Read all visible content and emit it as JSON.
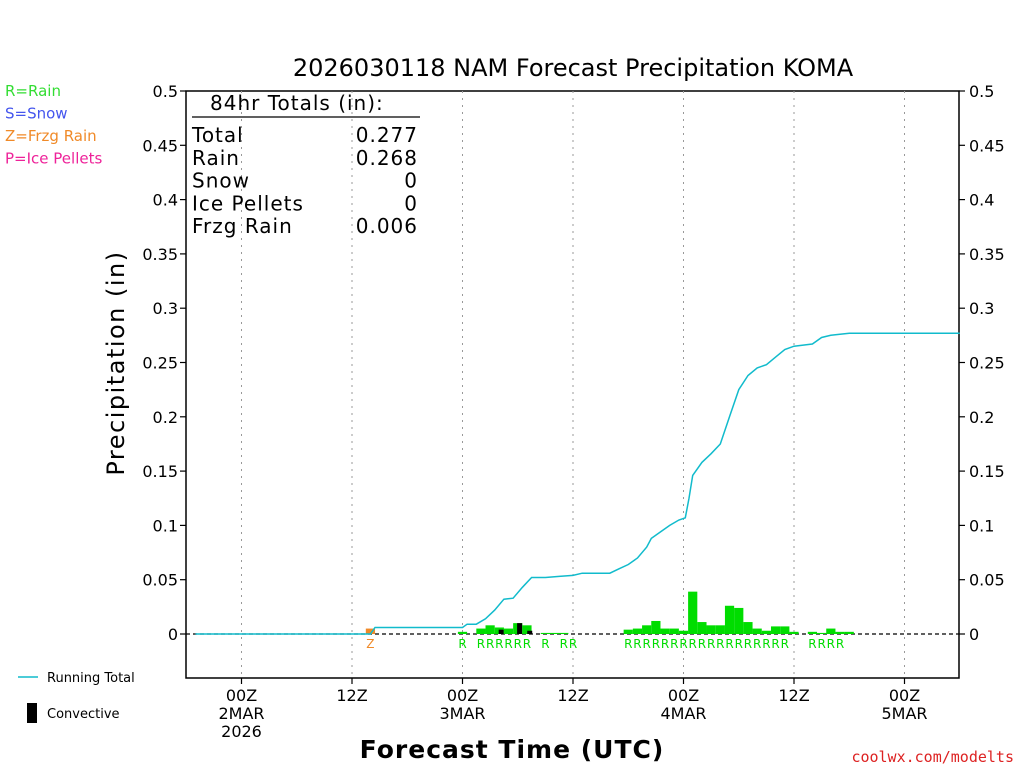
{
  "chart_data": {
    "type": "bar+line",
    "title": "2026030118 NAM Forecast Precipitation KOMA",
    "ylabel": "Precipitation (in)",
    "xlabel": "Forecast Time (UTC)",
    "credit": "coolwx.com/modelts",
    "ylim": [
      -0.04,
      0.5
    ],
    "xlim_hours": [
      -6,
      78
    ],
    "y_ticks": [
      0,
      0.05,
      0.1,
      0.15,
      0.2,
      0.25,
      0.3,
      0.35,
      0.4,
      0.45,
      0.5
    ],
    "y_tick_labels": [
      "0",
      "0.05",
      "0.1",
      "0.15",
      "0.2",
      "0.25",
      "0.3",
      "0.35",
      "0.4",
      "0.45",
      "0.5"
    ],
    "x_ticks": [
      {
        "hour": 0,
        "lines": [
          "00Z",
          "2MAR",
          "2026"
        ]
      },
      {
        "hour": 12,
        "lines": [
          "12Z"
        ]
      },
      {
        "hour": 24,
        "lines": [
          "00Z",
          "3MAR"
        ]
      },
      {
        "hour": 36,
        "lines": [
          "12Z"
        ]
      },
      {
        "hour": 48,
        "lines": [
          "00Z",
          "4MAR"
        ]
      },
      {
        "hour": 60,
        "lines": [
          "12Z"
        ]
      },
      {
        "hour": 72,
        "lines": [
          "00Z",
          "5MAR"
        ]
      }
    ],
    "legend_types": [
      {
        "label": "R=Rain",
        "color": "#33dd33"
      },
      {
        "label": "S=Snow",
        "color": "#4455ee"
      },
      {
        "label": "Z=Frzg Rain",
        "color": "#f08a28"
      },
      {
        "label": "P=Ice Pellets",
        "color": "#ee2299"
      }
    ],
    "legend_bottom": {
      "running_total": "Running Total",
      "convective": "Convective"
    },
    "totals": {
      "header": "84hr Totals (in):",
      "rows": [
        {
          "label": "Total",
          "value": "0.277"
        },
        {
          "label": "Rain",
          "value": "0.268"
        },
        {
          "label": "Snow",
          "value": "0"
        },
        {
          "label": "Ice Pellets",
          "value": "0"
        },
        {
          "label": "Frzg Rain",
          "value": "0.006"
        }
      ]
    },
    "colors": {
      "rain": "#00dd00",
      "frzg": "#f08a28",
      "running_total": "#11bbcc",
      "convective": "#000000",
      "grid": "#999999"
    },
    "precip_bars": [
      {
        "hour": 14,
        "value": 0.005,
        "type": "Z"
      },
      {
        "hour": 24,
        "value": 0.002,
        "type": "R"
      },
      {
        "hour": 26,
        "value": 0.005,
        "type": "R"
      },
      {
        "hour": 27,
        "value": 0.008,
        "type": "R"
      },
      {
        "hour": 28,
        "value": 0.006,
        "type": "R"
      },
      {
        "hour": 29,
        "value": 0.005,
        "type": "R"
      },
      {
        "hour": 30,
        "value": 0.01,
        "type": "R"
      },
      {
        "hour": 31,
        "value": 0.008,
        "type": "R"
      },
      {
        "hour": 33,
        "value": 0.001,
        "type": "R"
      },
      {
        "hour": 34,
        "value": 0.001,
        "type": "R"
      },
      {
        "hour": 35,
        "value": 0.001,
        "type": "R"
      },
      {
        "hour": 42,
        "value": 0.004,
        "type": "R"
      },
      {
        "hour": 43,
        "value": 0.005,
        "type": "R"
      },
      {
        "hour": 44,
        "value": 0.008,
        "type": "R"
      },
      {
        "hour": 45,
        "value": 0.012,
        "type": "R"
      },
      {
        "hour": 46,
        "value": 0.005,
        "type": "R"
      },
      {
        "hour": 47,
        "value": 0.005,
        "type": "R"
      },
      {
        "hour": 48,
        "value": 0.003,
        "type": "R"
      },
      {
        "hour": 49,
        "value": 0.039,
        "type": "R"
      },
      {
        "hour": 50,
        "value": 0.011,
        "type": "R"
      },
      {
        "hour": 51,
        "value": 0.008,
        "type": "R"
      },
      {
        "hour": 52,
        "value": 0.008,
        "type": "R"
      },
      {
        "hour": 53,
        "value": 0.026,
        "type": "R"
      },
      {
        "hour": 54,
        "value": 0.024,
        "type": "R"
      },
      {
        "hour": 55,
        "value": 0.011,
        "type": "R"
      },
      {
        "hour": 56,
        "value": 0.005,
        "type": "R"
      },
      {
        "hour": 57,
        "value": 0.003,
        "type": "R"
      },
      {
        "hour": 58,
        "value": 0.007,
        "type": "R"
      },
      {
        "hour": 59,
        "value": 0.007,
        "type": "R"
      },
      {
        "hour": 60,
        "value": 0.002,
        "type": "R"
      },
      {
        "hour": 62,
        "value": 0.002,
        "type": "R"
      },
      {
        "hour": 63,
        "value": 0.001,
        "type": "R"
      },
      {
        "hour": 64,
        "value": 0.005,
        "type": "R"
      },
      {
        "hour": 65,
        "value": 0.002,
        "type": "R"
      },
      {
        "hour": 66,
        "value": 0.002,
        "type": "R"
      }
    ],
    "convective_bars": [
      {
        "hour": 28.2,
        "value": 0.004
      },
      {
        "hour": 30.2,
        "value": 0.01
      },
      {
        "hour": 31.3,
        "value": 0.003
      }
    ],
    "type_marks": [
      {
        "hour": 14,
        "letter": "Z"
      },
      {
        "hour": 24,
        "letter": "R"
      },
      {
        "hour": 26,
        "letter": "R"
      },
      {
        "hour": 27,
        "letter": "R"
      },
      {
        "hour": 28,
        "letter": "R"
      },
      {
        "hour": 29,
        "letter": "R"
      },
      {
        "hour": 30,
        "letter": "R"
      },
      {
        "hour": 31,
        "letter": "R"
      },
      {
        "hour": 33,
        "letter": "R"
      },
      {
        "hour": 35,
        "letter": "R"
      },
      {
        "hour": 36,
        "letter": "R"
      },
      {
        "hour": 42,
        "letter": "R"
      },
      {
        "hour": 43,
        "letter": "R"
      },
      {
        "hour": 44,
        "letter": "R"
      },
      {
        "hour": 45,
        "letter": "R"
      },
      {
        "hour": 46,
        "letter": "R"
      },
      {
        "hour": 47,
        "letter": "R"
      },
      {
        "hour": 48,
        "letter": "R"
      },
      {
        "hour": 49,
        "letter": "R"
      },
      {
        "hour": 50,
        "letter": "R"
      },
      {
        "hour": 51,
        "letter": "R"
      },
      {
        "hour": 52,
        "letter": "R"
      },
      {
        "hour": 53,
        "letter": "R"
      },
      {
        "hour": 54,
        "letter": "R"
      },
      {
        "hour": 55,
        "letter": "R"
      },
      {
        "hour": 56,
        "letter": "R"
      },
      {
        "hour": 57,
        "letter": "R"
      },
      {
        "hour": 58,
        "letter": "R"
      },
      {
        "hour": 59,
        "letter": "R"
      },
      {
        "hour": 62,
        "letter": "R"
      },
      {
        "hour": 63,
        "letter": "R"
      },
      {
        "hour": 64,
        "letter": "R"
      },
      {
        "hour": 65,
        "letter": "R"
      }
    ],
    "running_total": [
      [
        -5,
        0
      ],
      [
        14,
        0
      ],
      [
        14.5,
        0.006
      ],
      [
        24,
        0.006
      ],
      [
        24.5,
        0.009
      ],
      [
        25.5,
        0.009
      ],
      [
        26.5,
        0.014
      ],
      [
        27.5,
        0.022
      ],
      [
        28.5,
        0.032
      ],
      [
        29.5,
        0.033
      ],
      [
        30.5,
        0.043
      ],
      [
        31.5,
        0.052
      ],
      [
        33,
        0.052
      ],
      [
        34.5,
        0.053
      ],
      [
        36,
        0.054
      ],
      [
        37,
        0.056
      ],
      [
        40,
        0.056
      ],
      [
        41,
        0.06
      ],
      [
        42,
        0.064
      ],
      [
        43,
        0.07
      ],
      [
        44,
        0.08
      ],
      [
        44.5,
        0.088
      ],
      [
        45.5,
        0.094
      ],
      [
        46.5,
        0.1
      ],
      [
        47.5,
        0.105
      ],
      [
        48.2,
        0.107
      ],
      [
        48.6,
        0.125
      ],
      [
        49,
        0.146
      ],
      [
        50,
        0.158
      ],
      [
        51,
        0.166
      ],
      [
        52,
        0.175
      ],
      [
        53,
        0.2
      ],
      [
        54,
        0.225
      ],
      [
        55,
        0.238
      ],
      [
        56,
        0.245
      ],
      [
        57,
        0.248
      ],
      [
        58,
        0.255
      ],
      [
        59,
        0.262
      ],
      [
        60,
        0.265
      ],
      [
        61,
        0.266
      ],
      [
        62,
        0.267
      ],
      [
        63,
        0.273
      ],
      [
        64,
        0.275
      ],
      [
        65,
        0.276
      ],
      [
        66,
        0.277
      ],
      [
        78,
        0.277
      ]
    ]
  }
}
